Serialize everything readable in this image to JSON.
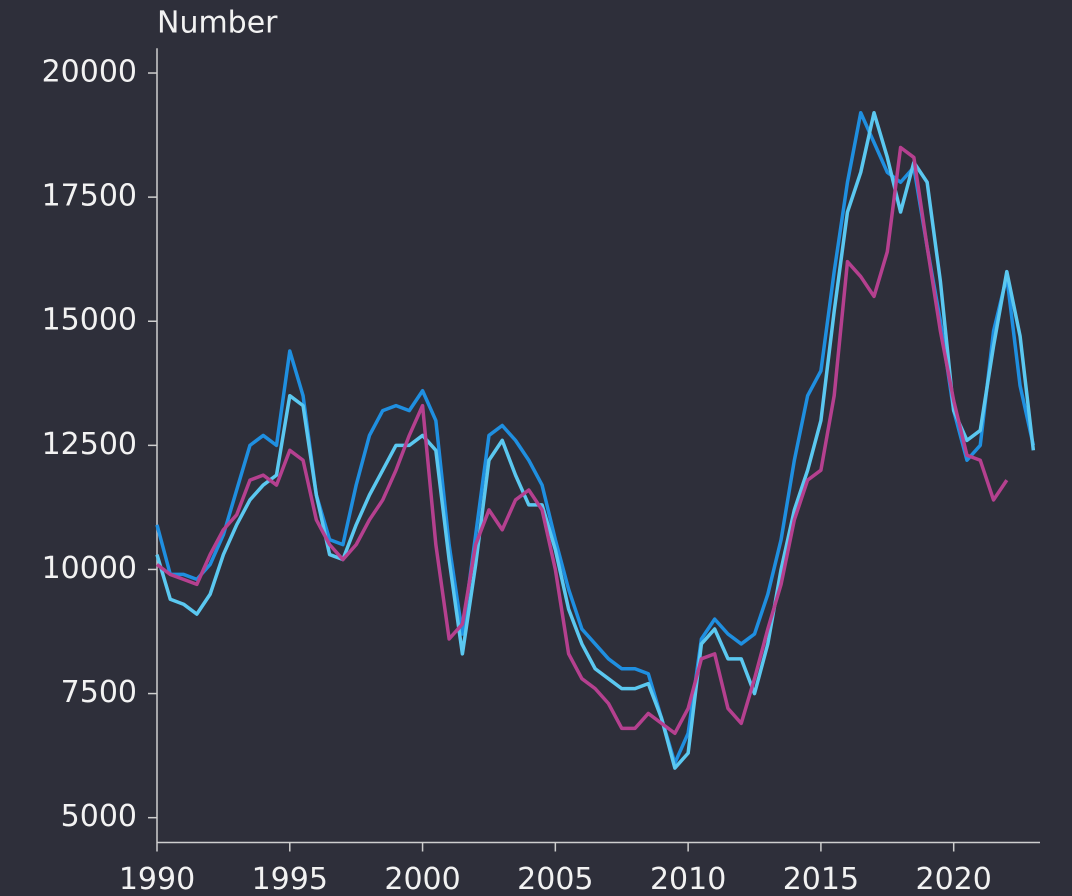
{
  "chart_data": {
    "type": "line",
    "y_label": "Number",
    "x": [
      1990,
      1990.5,
      1991,
      1991.5,
      1992,
      1992.5,
      1993,
      1993.5,
      1994,
      1994.5,
      1995,
      1995.5,
      1996,
      1996.5,
      1997,
      1997.5,
      1998,
      1998.5,
      1999,
      1999.5,
      2000,
      2000.5,
      2001,
      2001.5,
      2002,
      2002.5,
      2003,
      2003.5,
      2004,
      2004.5,
      2005,
      2005.5,
      2006,
      2006.5,
      2007,
      2007.5,
      2008,
      2008.5,
      2009,
      2009.5,
      2010,
      2010.5,
      2011,
      2011.5,
      2012,
      2012.5,
      2013,
      2013.5,
      2014,
      2014.5,
      2015,
      2015.5,
      2016,
      2016.5,
      2017,
      2017.5,
      2018,
      2018.5,
      2019,
      2019.5,
      2020,
      2020.5,
      2021,
      2021.5,
      2022,
      2022.5,
      2023
    ],
    "series": [
      {
        "color": "#1f8fe0",
        "values": [
          10900,
          9900,
          9900,
          9800,
          10100,
          10700,
          11600,
          12500,
          12700,
          12500,
          14400,
          13500,
          11500,
          10600,
          10500,
          11700,
          12700,
          13200,
          13300,
          13200,
          13600,
          13000,
          10500,
          8700,
          10700,
          12700,
          12900,
          12600,
          12200,
          11700,
          10600,
          9600,
          8800,
          8500,
          8200,
          8000,
          8000,
          7900,
          7000,
          6100,
          6700,
          8600,
          9000,
          8700,
          8500,
          8700,
          9500,
          10600,
          12200,
          13500,
          14000,
          16000,
          17800,
          19200,
          18600,
          18000,
          17800,
          18100,
          16500,
          15000,
          13200,
          12200,
          12500,
          14800,
          15900,
          13700,
          12500
        ]
      },
      {
        "color": "#5bc8f0",
        "values": [
          10300,
          9400,
          9300,
          9100,
          9500,
          10300,
          10900,
          11400,
          11700,
          11900,
          13500,
          13300,
          11500,
          10300,
          10200,
          10900,
          11500,
          12000,
          12500,
          12500,
          12700,
          12400,
          10200,
          8300,
          10100,
          12200,
          12600,
          11900,
          11300,
          11300,
          10400,
          9200,
          8500,
          8000,
          7800,
          7600,
          7600,
          7700,
          7000,
          6000,
          6300,
          8500,
          8800,
          8200,
          8200,
          7500,
          8500,
          10000,
          11200,
          12000,
          13000,
          15200,
          17200,
          18000,
          19200,
          18300,
          17200,
          18200,
          17800,
          15800,
          13200,
          12600,
          12800,
          14500,
          16000,
          14700,
          12400
        ]
      },
      {
        "color": "#b5408f",
        "values": [
          10100,
          9900,
          9800,
          9700,
          10300,
          10800,
          11100,
          11800,
          11900,
          11700,
          12400,
          12200,
          11000,
          10500,
          10200,
          10500,
          11000,
          11400,
          12000,
          12700,
          13300,
          10500,
          8600,
          8900,
          10500,
          11200,
          10800,
          11400,
          11600,
          11200,
          10000,
          8300,
          7800,
          7600,
          7300,
          6800,
          6800,
          7100,
          6900,
          6700,
          7200,
          8200,
          8300,
          7200,
          6900,
          7800,
          8800,
          9700,
          11000,
          11800,
          12000,
          13500,
          16200,
          15900,
          15500,
          16400,
          18500,
          18300,
          16500,
          14800,
          13400,
          12300,
          12200,
          11400,
          11800,
          null,
          null
        ]
      }
    ],
    "xlim": [
      1990,
      2023.25
    ],
    "xticks": [
      1990,
      1995,
      2000,
      2005,
      2010,
      2015,
      2020
    ],
    "ylim": [
      4500,
      20500
    ],
    "yticks": [
      5000,
      7500,
      10000,
      12500,
      15000,
      17500,
      20000
    ]
  }
}
